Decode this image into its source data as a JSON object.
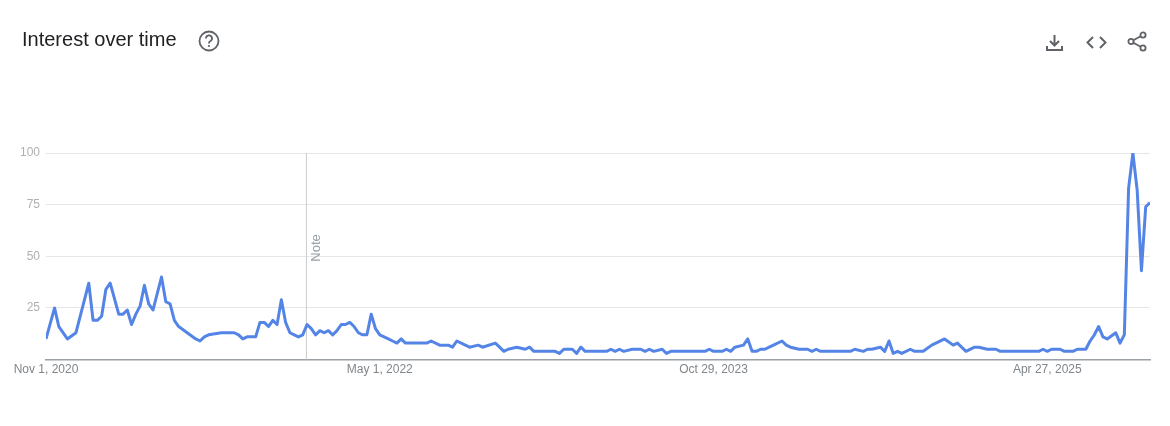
{
  "chart_data": {
    "type": "line",
    "title": "Interest over time",
    "x": [
      "2020-11-01",
      "2020-11-15",
      "2020-11-22",
      "2020-12-06",
      "2020-12-20",
      "2021-01-10",
      "2021-01-17",
      "2021-01-24",
      "2021-01-31",
      "2021-02-07",
      "2021-02-14",
      "2021-02-28",
      "2021-03-07",
      "2021-03-14",
      "2021-03-21",
      "2021-03-28",
      "2021-04-04",
      "2021-04-11",
      "2021-04-18",
      "2021-04-25",
      "2021-05-09",
      "2021-05-16",
      "2021-05-23",
      "2021-05-30",
      "2021-06-06",
      "2021-06-20",
      "2021-07-04",
      "2021-07-11",
      "2021-07-18",
      "2021-07-25",
      "2021-08-15",
      "2021-09-05",
      "2021-09-12",
      "2021-09-19",
      "2021-09-26",
      "2021-10-10",
      "2021-10-17",
      "2021-10-24",
      "2021-10-31",
      "2021-11-07",
      "2021-11-14",
      "2021-11-21",
      "2021-11-28",
      "2021-12-05",
      "2021-12-12",
      "2021-12-19",
      "2021-12-26",
      "2022-01-02",
      "2022-01-09",
      "2022-01-16",
      "2022-01-23",
      "2022-01-30",
      "2022-02-06",
      "2022-02-13",
      "2022-02-20",
      "2022-02-27",
      "2022-03-06",
      "2022-03-13",
      "2022-03-20",
      "2022-03-27",
      "2022-04-03",
      "2022-04-10",
      "2022-04-17",
      "2022-04-24",
      "2022-05-01",
      "2022-05-15",
      "2022-05-22",
      "2022-05-29",
      "2022-06-05",
      "2022-06-12",
      "2022-07-17",
      "2022-07-24",
      "2022-08-07",
      "2022-08-21",
      "2022-08-28",
      "2022-09-04",
      "2022-09-18",
      "2022-09-25",
      "2022-10-09",
      "2022-10-16",
      "2022-11-06",
      "2022-11-13",
      "2022-11-20",
      "2022-11-27",
      "2022-12-11",
      "2022-12-25",
      "2023-01-01",
      "2023-01-08",
      "2023-02-12",
      "2023-02-19",
      "2023-02-26",
      "2023-03-12",
      "2023-03-19",
      "2023-03-26",
      "2023-04-02",
      "2023-05-07",
      "2023-05-14",
      "2023-05-21",
      "2023-05-28",
      "2023-06-04",
      "2023-06-18",
      "2023-07-02",
      "2023-07-09",
      "2023-07-16",
      "2023-07-23",
      "2023-08-06",
      "2023-08-13",
      "2023-08-20",
      "2023-10-15",
      "2023-10-22",
      "2023-10-29",
      "2023-11-12",
      "2023-11-19",
      "2023-11-26",
      "2023-12-03",
      "2023-12-17",
      "2023-12-24",
      "2023-12-31",
      "2024-01-07",
      "2024-01-14",
      "2024-01-21",
      "2024-01-28",
      "2024-02-04",
      "2024-02-18",
      "2024-02-25",
      "2024-03-03",
      "2024-03-17",
      "2024-03-31",
      "2024-04-07",
      "2024-04-14",
      "2024-04-21",
      "2024-06-09",
      "2024-06-16",
      "2024-06-30",
      "2024-07-07",
      "2024-07-14",
      "2024-07-28",
      "2024-08-04",
      "2024-08-11",
      "2024-08-18",
      "2024-08-25",
      "2024-09-01",
      "2024-09-15",
      "2024-09-22",
      "2024-10-06",
      "2024-10-20",
      "2024-11-10",
      "2024-11-24",
      "2024-12-01",
      "2024-12-15",
      "2024-12-29",
      "2025-01-05",
      "2025-01-19",
      "2025-02-02",
      "2025-02-09",
      "2025-04-13",
      "2025-04-20",
      "2025-04-27",
      "2025-05-04",
      "2025-05-18",
      "2025-05-25",
      "2025-06-08",
      "2025-06-15",
      "2025-06-29",
      "2025-07-06",
      "2025-07-13",
      "2025-07-20",
      "2025-07-27",
      "2025-08-03",
      "2025-08-17",
      "2025-08-24",
      "2025-08-31",
      "2025-09-07",
      "2025-09-14",
      "2025-09-21",
      "2025-09-28",
      "2025-10-05",
      "2025-10-12"
    ],
    "series": [
      {
        "color": "#5485e6",
        "values": [
          10,
          25,
          16,
          10,
          13,
          37,
          19,
          19,
          21,
          34,
          37,
          22,
          22,
          24,
          17,
          22,
          26,
          36,
          27,
          24,
          40,
          28,
          27,
          19,
          16,
          13,
          10,
          9,
          11,
          12,
          13,
          13,
          12,
          10,
          11,
          11,
          18,
          18,
          16,
          19,
          17,
          29,
          18,
          13,
          12,
          11,
          12,
          17,
          15,
          12,
          14,
          13,
          14,
          12,
          14,
          17,
          17,
          18,
          16,
          13,
          12,
          12,
          22,
          15,
          12,
          10,
          9,
          8,
          10,
          8,
          8,
          9,
          7,
          7,
          6,
          9,
          7,
          6,
          7,
          6,
          8,
          6,
          4,
          5,
          6,
          5,
          6,
          4,
          4,
          3,
          5,
          5,
          3,
          6,
          4,
          4,
          5,
          4,
          5,
          4,
          5,
          5,
          4,
          5,
          4,
          5,
          3,
          4,
          4,
          5,
          4,
          4,
          5,
          4,
          6,
          7,
          10,
          4,
          4,
          5,
          5,
          6,
          7,
          9,
          7,
          6,
          5,
          5,
          4,
          5,
          4,
          4,
          5,
          4,
          5,
          5,
          6,
          4,
          9,
          3,
          4,
          3,
          5,
          4,
          4,
          7,
          10,
          7,
          8,
          4,
          6,
          6,
          5,
          5,
          4,
          4,
          5,
          4,
          5,
          5,
          4,
          4,
          5,
          5,
          9,
          12,
          16,
          11,
          10,
          13,
          8,
          12,
          83,
          100,
          82,
          43,
          74,
          76
        ]
      }
    ],
    "xlim": [
      "2020-11-01",
      "2025-10-12"
    ],
    "xticks": [
      {
        "value": "2020-11-01",
        "label": "Nov 1, 2020"
      },
      {
        "value": "2022-05-01",
        "label": "May 1, 2022"
      },
      {
        "value": "2023-10-29",
        "label": "Oct 29, 2023"
      },
      {
        "value": "2025-04-27",
        "label": "Apr 27, 2025"
      }
    ],
    "ylim": [
      0,
      100
    ],
    "yticks": [
      25,
      50,
      75,
      100
    ],
    "grid": "y",
    "legend": false,
    "marker": "none",
    "line_style": "solid",
    "ref_lines": [
      {
        "axis": "x",
        "value": "2022-01-01",
        "label": "Note",
        "color": "#cccccc"
      }
    ]
  }
}
